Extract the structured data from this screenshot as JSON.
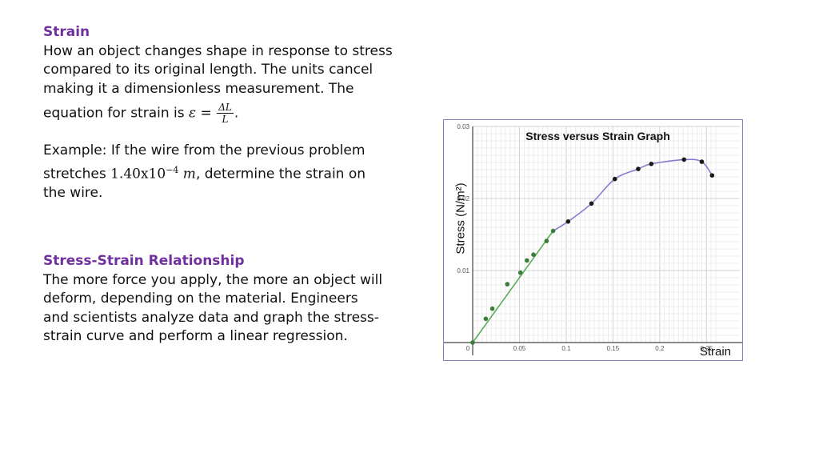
{
  "strain": {
    "heading": "Strain",
    "lines": [
      "How an object changes shape in response to stress",
      "compared to its original length.  The units cancel",
      "making it a dimensionless measurement.  The"
    ],
    "equation_prefix": "equation for strain is ",
    "equation_lhs": "ε =",
    "equation_num": "ΔL",
    "equation_den": "L",
    "equation_suffix": "."
  },
  "example": {
    "line1": "Example:  If the wire from the previous problem",
    "line2_prefix": "stretches ",
    "line2_value": "1.40x10",
    "line2_exp": "−4",
    "line2_unit": " m",
    "line2_suffix": ", determine the strain on",
    "line3": "the wire."
  },
  "relationship": {
    "heading": "Stress-Strain Relationship",
    "lines": [
      "The more force you apply, the more an object will",
      "deform, depending on the material.    Engineers",
      "and scientists analyze data and graph the stress-",
      "strain curve and perform a linear regression."
    ]
  },
  "chart_data": {
    "type": "scatter",
    "title": "Stress versus Strain Graph",
    "xlabel": "Strain",
    "ylabel": "Stress (N/m²)",
    "xlim": [
      0,
      0.26
    ],
    "ylim": [
      0,
      0.03
    ],
    "x_ticks": [
      "0",
      "0.05",
      "0.1",
      "0.15",
      "0.2",
      "0.25"
    ],
    "y_ticks": [
      "0.01",
      "0.02",
      "0.03"
    ],
    "grid": true,
    "colors": {
      "linear": "#5cad5c",
      "curve": "#8c7ad0",
      "point": "#1a1a1a",
      "linear_point": "#3a7d3a",
      "border": "#8e7cc3"
    },
    "series": [
      {
        "points": [
          {
            "x": 0.0,
            "y": 0.0
          },
          {
            "x": 0.014,
            "y": 0.0033
          },
          {
            "x": 0.021,
            "y": 0.0047
          },
          {
            "x": 0.037,
            "y": 0.0081
          },
          {
            "x": 0.051,
            "y": 0.0097
          },
          {
            "x": 0.058,
            "y": 0.0114
          },
          {
            "x": 0.065,
            "y": 0.0122
          },
          {
            "x": 0.079,
            "y": 0.0141
          },
          {
            "x": 0.086,
            "y": 0.0155
          }
        ]
      },
      {
        "points": [
          {
            "x": 0.102,
            "y": 0.0168
          },
          {
            "x": 0.127,
            "y": 0.0193
          },
          {
            "x": 0.152,
            "y": 0.0227
          },
          {
            "x": 0.177,
            "y": 0.0241
          },
          {
            "x": 0.191,
            "y": 0.0248
          },
          {
            "x": 0.226,
            "y": 0.0254
          },
          {
            "x": 0.245,
            "y": 0.0251
          },
          {
            "x": 0.256,
            "y": 0.0232
          }
        ]
      }
    ]
  }
}
